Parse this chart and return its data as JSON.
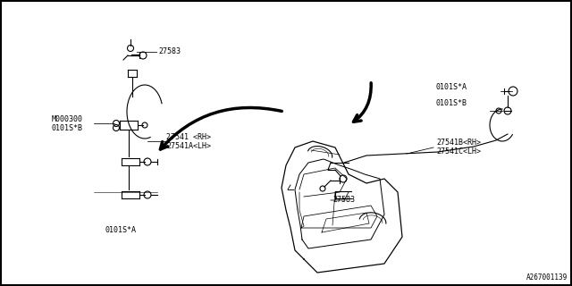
{
  "bg_color": "#ffffff",
  "border_color": "#000000",
  "line_color": "#000000",
  "text_color": "#000000",
  "labels": {
    "top_left_sensor": "27583",
    "left_assembly_rh": "27541 <RH>",
    "left_assembly_lh": "27541A<LH>",
    "left_bolt_m": "M000300",
    "left_bolt_0b": "0101S*B",
    "left_bottom_0a": "0101S*A",
    "right_top_0a": "0101S*A",
    "right_top_0b": "0101S*B",
    "right_assembly_rh": "27541B<RH>",
    "right_assembly_lh": "27541C<LH>",
    "bottom_center": "27583",
    "diagram_id": "A267001139"
  },
  "lw": 0.8,
  "fs": 6.0
}
